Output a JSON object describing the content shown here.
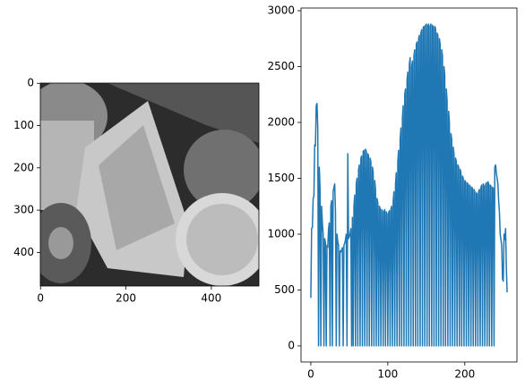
{
  "chart_data": [
    {
      "type": "image",
      "xlim": [
        -0.5,
        511.5
      ],
      "ylim": [
        479.5,
        -0.5
      ],
      "xticks": [
        0,
        200,
        400
      ],
      "yticks": [
        0,
        100,
        200,
        300,
        400
      ]
    },
    {
      "type": "line",
      "color": "#1f77b4",
      "xlim": [
        -12.75,
        267.75
      ],
      "ylim": [
        -144,
        3024
      ],
      "xticks": [
        0,
        100,
        200
      ],
      "yticks": [
        0,
        500,
        1000,
        1500,
        2000,
        2500,
        3000
      ],
      "x": [
        0,
        1,
        2,
        3,
        4,
        5,
        6,
        7,
        8,
        9,
        10,
        11,
        12,
        13,
        14,
        15,
        16,
        17,
        18,
        19,
        20,
        21,
        22,
        23,
        24,
        25,
        26,
        27,
        28,
        29,
        30,
        31,
        32,
        33,
        34,
        35,
        36,
        37,
        38,
        39,
        40,
        41,
        42,
        43,
        44,
        45,
        46,
        47,
        48,
        49,
        50,
        51,
        52,
        53,
        54,
        55,
        56,
        57,
        58,
        59,
        60,
        61,
        62,
        63,
        64,
        65,
        66,
        67,
        68,
        69,
        70,
        71,
        72,
        73,
        74,
        75,
        76,
        77,
        78,
        79,
        80,
        81,
        82,
        83,
        84,
        85,
        86,
        87,
        88,
        89,
        90,
        91,
        92,
        93,
        94,
        95,
        96,
        97,
        98,
        99,
        100,
        101,
        102,
        103,
        104,
        105,
        106,
        107,
        108,
        109,
        110,
        111,
        112,
        113,
        114,
        115,
        116,
        117,
        118,
        119,
        120,
        121,
        122,
        123,
        124,
        125,
        126,
        127,
        128,
        129,
        130,
        131,
        132,
        133,
        134,
        135,
        136,
        137,
        138,
        139,
        140,
        141,
        142,
        143,
        144,
        145,
        146,
        147,
        148,
        149,
        150,
        151,
        152,
        153,
        154,
        155,
        156,
        157,
        158,
        159,
        160,
        161,
        162,
        163,
        164,
        165,
        166,
        167,
        168,
        169,
        170,
        171,
        172,
        173,
        174,
        175,
        176,
        177,
        178,
        179,
        180,
        181,
        182,
        183,
        184,
        185,
        186,
        187,
        188,
        189,
        190,
        191,
        192,
        193,
        194,
        195,
        196,
        197,
        198,
        199,
        200,
        201,
        202,
        203,
        204,
        205,
        206,
        207,
        208,
        209,
        210,
        211,
        212,
        213,
        214,
        215,
        216,
        217,
        218,
        219,
        220,
        221,
        222,
        223,
        224,
        225,
        226,
        227,
        228,
        229,
        230,
        231,
        232,
        233,
        234,
        235,
        236,
        237,
        238,
        239,
        240,
        241,
        242,
        243,
        244,
        245,
        246,
        247,
        248,
        249,
        250,
        251,
        252,
        253,
        254,
        255
      ],
      "values": [
        430,
        1050,
        1060,
        1320,
        1340,
        1800,
        1790,
        2150,
        2170,
        1950,
        0,
        1600,
        1400,
        0,
        1250,
        1100,
        1000,
        0,
        960,
        920,
        0,
        900,
        880,
        1050,
        1100,
        0,
        1250,
        1300,
        0,
        1380,
        1420,
        1450,
        1200,
        0,
        1000,
        930,
        900,
        0,
        850,
        840,
        860,
        880,
        0,
        900,
        920,
        950,
        1000,
        0,
        1720,
        960,
        980,
        1000,
        1050,
        0,
        1150,
        0,
        1250,
        1350,
        0,
        1450,
        1500,
        0,
        1580,
        1620,
        0,
        1680,
        1700,
        0,
        1740,
        1750,
        0,
        1760,
        1740,
        0,
        1720,
        1700,
        0,
        1680,
        1650,
        0,
        1600,
        1550,
        0,
        1480,
        1400,
        0,
        1320,
        1280,
        0,
        1250,
        1230,
        0,
        1220,
        1210,
        0,
        1200,
        1220,
        0,
        1200,
        1180,
        0,
        1190,
        1210,
        0,
        1220,
        1250,
        0,
        1300,
        1380,
        0,
        1450,
        1550,
        0,
        1650,
        1750,
        0,
        1850,
        1950,
        0,
        2050,
        2150,
        0,
        2250,
        2300,
        0,
        2380,
        2450,
        0,
        2520,
        2580,
        0,
        2500,
        2550,
        0,
        2600,
        2650,
        0,
        2700,
        2720,
        0,
        2750,
        2780,
        0,
        2800,
        2830,
        0,
        2850,
        2860,
        0,
        2870,
        2880,
        0,
        2870,
        2880,
        0,
        2860,
        2880,
        0,
        2870,
        2850,
        0,
        2860,
        2840,
        0,
        2800,
        2780,
        0,
        2750,
        2700,
        0,
        2650,
        2600,
        0,
        2500,
        2420,
        0,
        2300,
        2200,
        0,
        2100,
        2000,
        0,
        1900,
        1850,
        0,
        1780,
        1720,
        0,
        1680,
        1650,
        0,
        1620,
        1600,
        0,
        1580,
        1550,
        0,
        1520,
        1500,
        0,
        1480,
        1470,
        0,
        1460,
        1450,
        0,
        1440,
        1430,
        0,
        1420,
        1410,
        0,
        1400,
        1380,
        0,
        1370,
        1360,
        0,
        1380,
        1400,
        0,
        1420,
        1440,
        0,
        1450,
        1430,
        0,
        1440,
        1460,
        0,
        1470,
        1450,
        0,
        1440,
        1430,
        0,
        1420,
        1410,
        0,
        1600,
        1620,
        1550,
        1500,
        1450,
        1300,
        1200,
        1000,
        950,
        900,
        600,
        580,
        1000,
        950,
        1050,
        700,
        480
      ]
    }
  ]
}
